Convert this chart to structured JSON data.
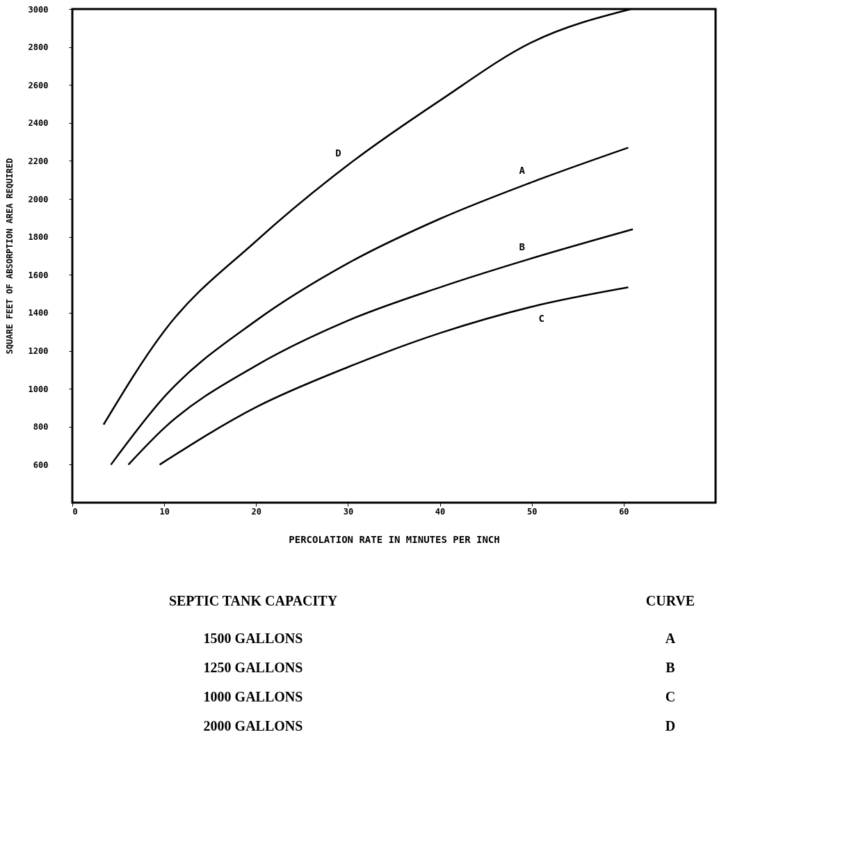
{
  "chart_data": {
    "type": "line",
    "xlabel": "PERCOLATION RATE IN MINUTES PER INCH",
    "ylabel": "SQUARE FEET OF ABSORPTION AREA REQUIRED",
    "xlim": [
      0,
      70
    ],
    "xticks": [
      0,
      10,
      20,
      30,
      40,
      50,
      60
    ],
    "ylim": [
      400,
      3000
    ],
    "yticks": [
      600,
      800,
      1000,
      1200,
      1400,
      1600,
      1800,
      2000,
      2200,
      2400,
      2600,
      2800,
      3000
    ],
    "grid": false,
    "legend": false,
    "line_style": "solid",
    "marker": "none",
    "series": [
      {
        "name": "D",
        "color": "#000000",
        "x": [
          3.4,
          10,
          20,
          30,
          40,
          50,
          60.8
        ],
        "values": [
          811,
          1304,
          1778,
          2179,
          2518,
          2825,
          3000
        ]
      },
      {
        "name": "A",
        "color": "#000000",
        "x": [
          4.2,
          10,
          20,
          30,
          40,
          50,
          60.5
        ],
        "values": [
          600,
          957,
          1359,
          1661,
          1895,
          2088,
          2270
        ]
      },
      {
        "name": "B",
        "color": "#000000",
        "x": [
          6.1,
          10,
          20,
          30,
          40,
          50,
          61
        ],
        "values": [
          600,
          793,
          1122,
          1359,
          1534,
          1687,
          1840
        ]
      },
      {
        "name": "C",
        "color": "#000000",
        "x": [
          9.5,
          20,
          30,
          40,
          50,
          60.5
        ],
        "values": [
          600,
          903,
          1114,
          1293,
          1432,
          1534
        ]
      }
    ],
    "annotations": [
      "SEPTIC TANK CAPACITY",
      "CURVE",
      "1500 GALLONS",
      "A",
      "1250 GALLONS",
      "B",
      "1000 GALLONS",
      "C",
      "2000 GALLONS",
      "D"
    ]
  }
}
